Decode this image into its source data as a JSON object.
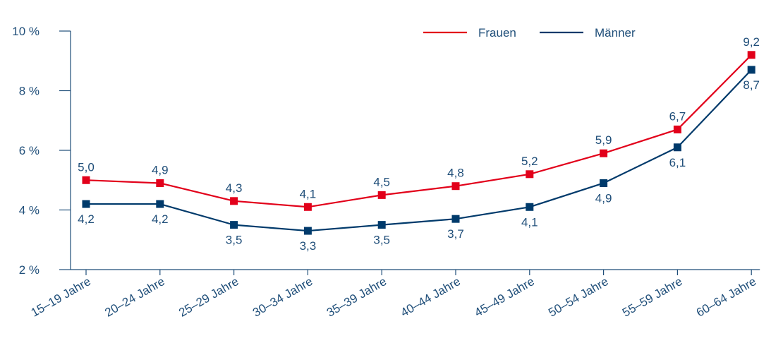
{
  "chart_data": {
    "type": "line",
    "categories": [
      "15–19 Jahre",
      "20–24 Jahre",
      "25–29 Jahre",
      "30–34 Jahre",
      "35–39 Jahre",
      "40–44 Jahre",
      "45–49 Jahre",
      "50–54 Jahre",
      "55–59 Jahre",
      "60–64 Jahre"
    ],
    "series": [
      {
        "name": "Frauen",
        "color": "#e2001a",
        "values": [
          5.0,
          4.9,
          4.3,
          4.1,
          4.5,
          4.8,
          5.2,
          5.9,
          6.7,
          9.2
        ],
        "labels": [
          "5,0",
          "4,9",
          "4,3",
          "4,1",
          "4,5",
          "4,8",
          "5,2",
          "5,9",
          "6,7",
          "9,2"
        ]
      },
      {
        "name": "Männer",
        "color": "#003a6b",
        "values": [
          4.2,
          4.2,
          3.5,
          3.3,
          3.5,
          3.7,
          4.1,
          4.9,
          6.1,
          8.7
        ],
        "labels": [
          "4,2",
          "4,2",
          "3,5",
          "3,3",
          "3,5",
          "3,7",
          "4,1",
          "4,9",
          "6,1",
          "8,7"
        ]
      }
    ],
    "yticks": [
      2,
      4,
      6,
      8,
      10
    ],
    "ytick_labels": [
      "2 %",
      "4 %",
      "6 %",
      "8 %",
      "10 %"
    ],
    "ylim": [
      2,
      10
    ],
    "legend_position": "top-right",
    "grid": false,
    "axis_color": "#1f4e79"
  }
}
